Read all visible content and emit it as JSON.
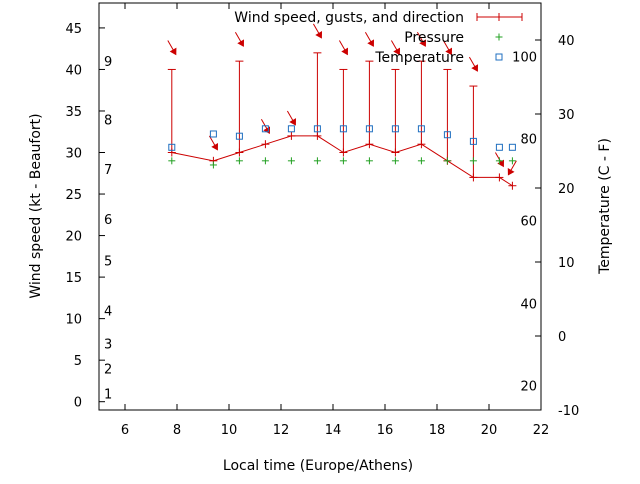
{
  "chart_data": {
    "type": "line",
    "xlabel": "Local time (Europe/Athens)",
    "ylabel": "Wind speed (kt - Beaufort)",
    "y2label": "Temperature (C - F)",
    "xlim": [
      5,
      22
    ],
    "xticks": [
      6,
      8,
      10,
      12,
      14,
      16,
      18,
      20,
      22
    ],
    "ylim": [
      -1,
      48
    ],
    "yticks": [
      0,
      5,
      10,
      15,
      20,
      25,
      30,
      35,
      40,
      45
    ],
    "y2lim": [
      -10,
      45
    ],
    "y2ticks": [
      -10,
      0,
      10,
      20,
      30,
      40
    ],
    "beaufort_labels": [
      {
        "label": "1",
        "kt": 1
      },
      {
        "label": "2",
        "kt": 4
      },
      {
        "label": "3",
        "kt": 7
      },
      {
        "label": "4",
        "kt": 11
      },
      {
        "label": "5",
        "kt": 17
      },
      {
        "label": "6",
        "kt": 22
      },
      {
        "label": "7",
        "kt": 28
      },
      {
        "label": "8",
        "kt": 34
      },
      {
        "label": "9",
        "kt": 41
      }
    ],
    "fahrenheit_labels": [
      {
        "label": "20",
        "c": -6.7
      },
      {
        "label": "40",
        "c": 4.4
      },
      {
        "label": "60",
        "c": 15.6
      },
      {
        "label": "80",
        "c": 26.7
      },
      {
        "label": "100",
        "c": 37.8
      }
    ],
    "legend": [
      {
        "label": "Wind speed, gusts, and direction",
        "color": "#cc0000",
        "marker": "errorbar"
      },
      {
        "label": "Pressure",
        "color": "#22a022",
        "marker": "plus"
      },
      {
        "label": "Temperature",
        "color": "#1f6fc0",
        "marker": "square"
      }
    ],
    "legend_position": "top-right",
    "series": [
      {
        "name": "Wind speed, gusts, and direction",
        "x": [
          7.8,
          9.4,
          10.4,
          11.4,
          12.4,
          13.4,
          14.4,
          15.4,
          16.4,
          17.4,
          18.4,
          19.4,
          20.4,
          20.9
        ],
        "values": [
          30,
          29,
          30,
          31,
          32,
          32,
          30,
          31,
          30,
          31,
          29,
          27,
          27,
          26
        ],
        "gusts": [
          40,
          null,
          41,
          null,
          null,
          42,
          40,
          41,
          40,
          41,
          40,
          38,
          null,
          null
        ],
        "direction_deg": [
          330,
          330,
          330,
          330,
          330,
          330,
          330,
          330,
          330,
          330,
          330,
          330,
          330,
          30
        ]
      },
      {
        "name": "Pressure",
        "x": [
          7.8,
          9.4,
          10.4,
          11.4,
          12.4,
          13.4,
          14.4,
          15.4,
          16.4,
          17.4,
          18.4,
          19.4,
          20.4,
          20.9
        ],
        "values": [
          29,
          28.5,
          29,
          29,
          29,
          29,
          29,
          29,
          29,
          29,
          29,
          29,
          29,
          29
        ]
      },
      {
        "name": "Temperature",
        "x": [
          7.8,
          9.4,
          10.4,
          11.4,
          12.4,
          13.4,
          14.4,
          15.4,
          16.4,
          17.4,
          18.4,
          19.4,
          20.4,
          20.9
        ],
        "values": [
          25.5,
          27.3,
          27.0,
          28.0,
          28.0,
          28.0,
          28.0,
          28.0,
          28.0,
          28.0,
          27.2,
          26.3,
          25.5,
          25.5
        ],
        "axis": "y2"
      }
    ]
  }
}
